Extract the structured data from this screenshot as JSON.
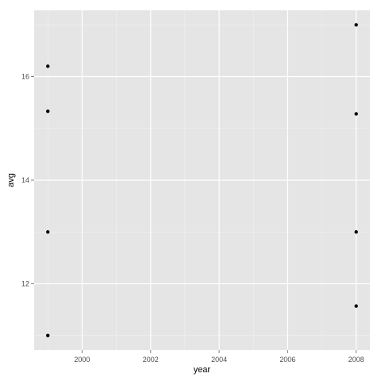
{
  "chart_data": {
    "type": "scatter",
    "title": "",
    "xlabel": "year",
    "ylabel": "avg",
    "xlim": [
      1998.6,
      2008.4
    ],
    "ylim": [
      10.72,
      17.28
    ],
    "grid": true,
    "legend": "none",
    "x_ticks": [
      {
        "value": 2000,
        "label": "2000"
      },
      {
        "value": 2002,
        "label": "2002"
      },
      {
        "value": 2004,
        "label": "2004"
      },
      {
        "value": 2006,
        "label": "2006"
      },
      {
        "value": 2008,
        "label": "2008"
      }
    ],
    "y_ticks": [
      {
        "value": 12,
        "label": "12"
      },
      {
        "value": 14,
        "label": "14"
      },
      {
        "value": 16,
        "label": "16"
      }
    ],
    "points": [
      {
        "x": 1999,
        "y": 16.2
      },
      {
        "x": 1999,
        "y": 15.33
      },
      {
        "x": 1999,
        "y": 13.0
      },
      {
        "x": 1999,
        "y": 11.0
      },
      {
        "x": 2008,
        "y": 17.0
      },
      {
        "x": 2008,
        "y": 15.28
      },
      {
        "x": 2008,
        "y": 13.0
      },
      {
        "x": 2008,
        "y": 11.57
      }
    ],
    "colors": {
      "panel": "#e5e5e5",
      "grid_major": "#ffffff",
      "grid_minor": "#f2f2f2",
      "point": "#000000",
      "tick": "#7f7f7f"
    }
  }
}
